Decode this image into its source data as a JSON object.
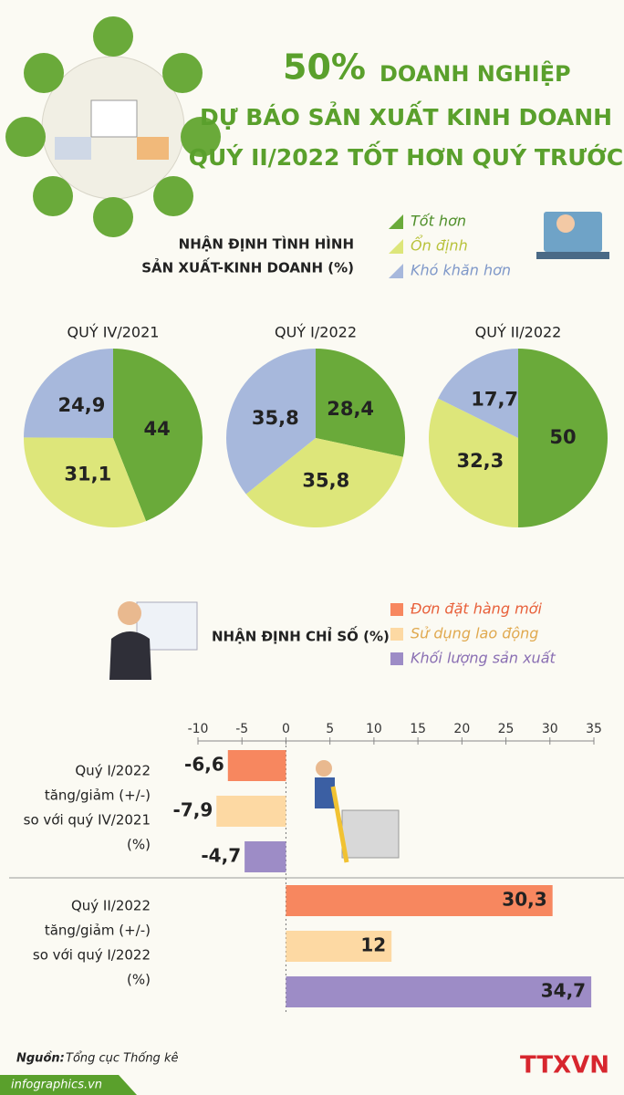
{
  "header": {
    "title_pct": "50%",
    "title_1": "DOANH NGHIỆP",
    "title_2": "DỰ BÁO SẢN XUẤT KINH DOANH",
    "title_3": "QUÝ II/2022 TỐT HƠN QUÝ TRƯỚC"
  },
  "pie_legend": {
    "title": [
      "NHẬN ĐỊNH TÌNH HÌNH",
      "SẢN XUẤT-KINH DOANH (%)"
    ],
    "categories": [
      "Tốt hơn",
      "Ổn định",
      "Khó khăn hơn"
    ],
    "colors": [
      "#6aaa3a",
      "#dde67a",
      "#a7b8dc"
    ]
  },
  "chart_data": [
    {
      "type": "pie",
      "title": "QUÝ IV/2021",
      "values": [
        44,
        31.1,
        24.9
      ],
      "value_labels": [
        "44",
        "31,1",
        "24,9"
      ]
    },
    {
      "type": "pie",
      "title": "QUÝ I/2022",
      "values": [
        28.4,
        35.8,
        35.8
      ],
      "value_labels": [
        "28,4",
        "35,8",
        "35,8"
      ]
    },
    {
      "type": "pie",
      "title": "QUÝ II/2022",
      "values": [
        50,
        32.3,
        17.7
      ],
      "value_labels": [
        "50",
        "32,3",
        "17,7"
      ]
    },
    {
      "type": "hbar",
      "title": "NHẬN ĐỊNH CHỈ SỐ (%)",
      "categories": [
        [
          "Quý I/2022",
          "tăng/giảm (+/-)",
          "so với quý IV/2021",
          "(%)"
        ],
        [
          "Quý II/2022",
          "tăng/giảm (+/-)",
          "so với quý I/2022",
          "(%)"
        ]
      ],
      "series": [
        {
          "name": "Đơn đặt hàng mới",
          "color": "#f7875f",
          "values": [
            -6.6,
            30.3
          ],
          "value_labels": [
            "-6,6",
            "30,3"
          ]
        },
        {
          "name": "Sử dụng lao động",
          "color": "#fdd9a3",
          "values": [
            -7.9,
            12
          ],
          "value_labels": [
            "-7,9",
            "12"
          ]
        },
        {
          "name": "Khối lượng sản xuất",
          "color": "#9d8cc6",
          "values": [
            -4.7,
            34.7
          ],
          "value_labels": [
            "-4,7",
            "34,7"
          ]
        }
      ],
      "xlim": [
        -10,
        35
      ],
      "xticks": [
        -10,
        -5,
        0,
        5,
        10,
        15,
        20,
        25,
        30,
        35
      ]
    }
  ],
  "footer": {
    "source_label": "Nguồn:",
    "source": "Tổng cục Thống kê",
    "site": "infographics.vn",
    "brand": "TTXVN"
  }
}
